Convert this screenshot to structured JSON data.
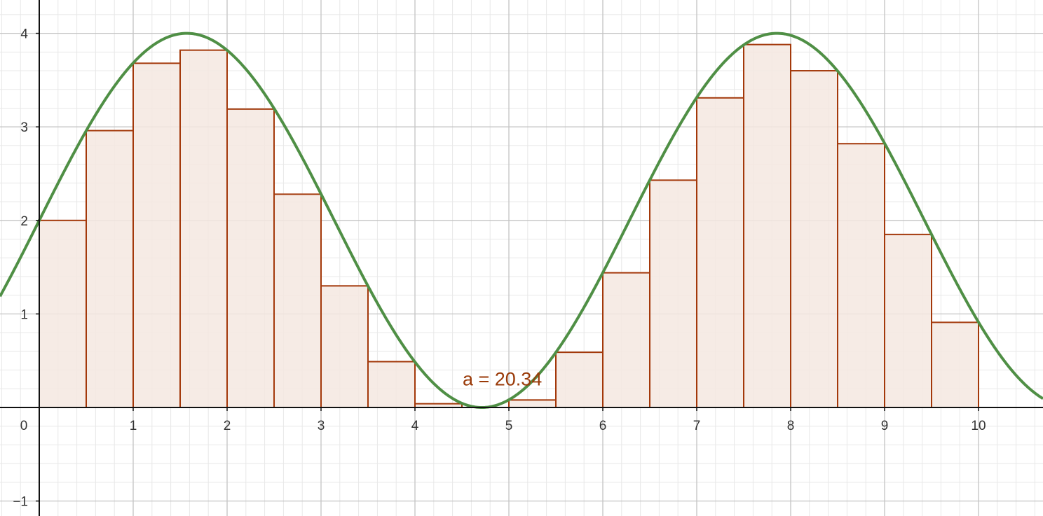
{
  "chart_data": {
    "type": "bar",
    "function": "2 + 2 sin(x)",
    "x_ticks": [
      "0",
      "1",
      "2",
      "3",
      "4",
      "5",
      "6",
      "7",
      "8",
      "9",
      "10"
    ],
    "y_ticks": [
      "−1",
      "1",
      "2",
      "3",
      "4"
    ],
    "xlim": [
      -0.41,
      10.7
    ],
    "ylim": [
      -1.15,
      4.35
    ],
    "grid": true,
    "bars": {
      "x_start": [
        0,
        0.5,
        1,
        1.5,
        2,
        2.5,
        3,
        3.5,
        4,
        4.5,
        5,
        5.5,
        6,
        6.5,
        7,
        7.5,
        8,
        8.5,
        9,
        9.5
      ],
      "width": 0.5,
      "heights": [
        2,
        2.96,
        3.68,
        3.82,
        3.19,
        2.28,
        1.3,
        0.49,
        0.04,
        0.0,
        0.08,
        0.59,
        1.44,
        2.43,
        3.31,
        3.88,
        3.6,
        2.82,
        1.85,
        0.91
      ]
    },
    "annotation": "a = 20.34",
    "colors": {
      "curve": "#4f8f45",
      "bar_stroke": "#a3380a",
      "bar_fill": "#f5e8e1",
      "label": "#9a3a08",
      "grid_major": "#c4c4c4",
      "grid_minor": "#e8e8e8",
      "axis": "#111111"
    }
  }
}
